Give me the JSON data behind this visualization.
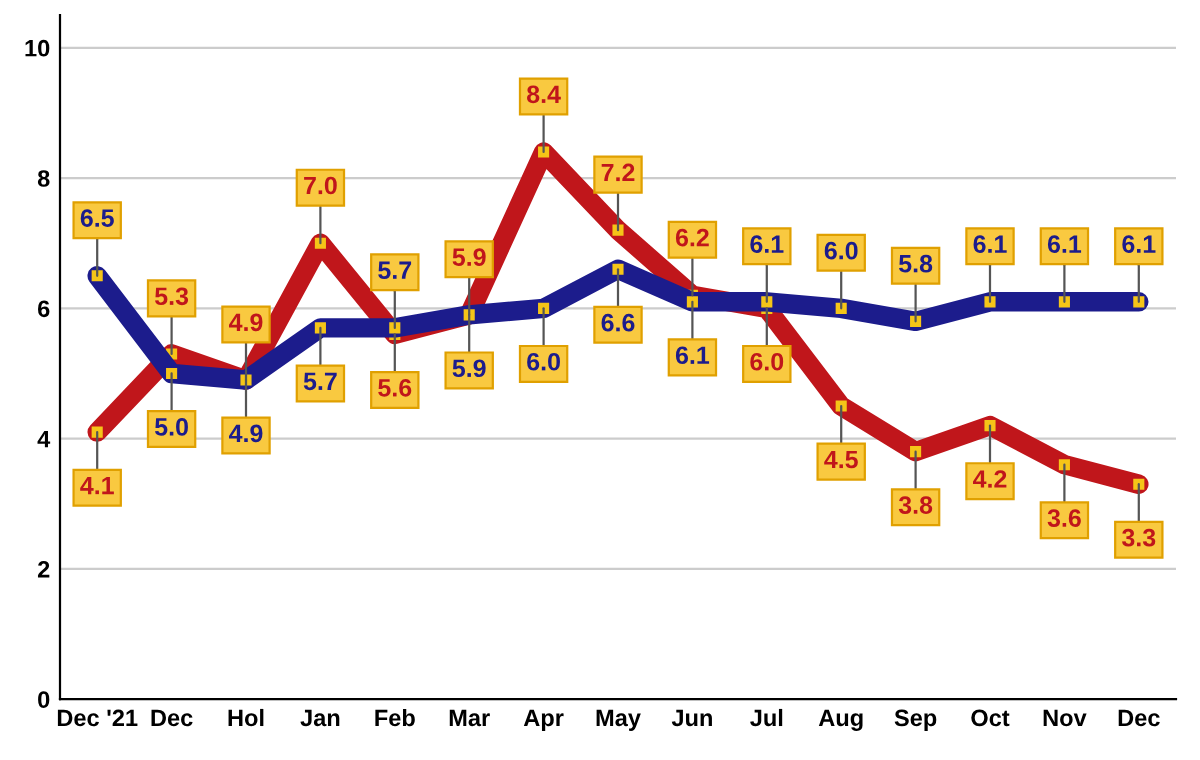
{
  "chart_data": {
    "type": "line",
    "categories": [
      "Dec '21",
      "Dec",
      "Hol",
      "Jan",
      "Feb",
      "Mar",
      "Apr",
      "May",
      "Jun",
      "Jul",
      "Aug",
      "Sep",
      "Oct",
      "Nov",
      "Dec"
    ],
    "series": [
      {
        "color": "#c0161b",
        "values": [
          4.1,
          5.3,
          4.9,
          7.0,
          5.6,
          5.9,
          8.4,
          7.2,
          6.2,
          6.0,
          4.5,
          3.8,
          4.2,
          3.6,
          3.3
        ],
        "value_labels": [
          "4.1",
          "5.3",
          "4.9",
          "7.0",
          "5.6",
          "5.9",
          "8.4",
          "7.2",
          "6.2",
          "6.0",
          "4.5",
          "3.8",
          "4.2",
          "3.6",
          "3.3"
        ]
      },
      {
        "color": "#1c1c8c",
        "values": [
          6.5,
          5.0,
          4.9,
          5.7,
          5.7,
          5.9,
          6.0,
          6.6,
          6.1,
          6.1,
          6.0,
          5.8,
          6.1,
          6.1,
          6.1
        ],
        "value_labels": [
          "6.5",
          "5.0",
          "4.9",
          "5.7",
          "5.7",
          "5.9",
          "6.0",
          "6.6",
          "6.1",
          "6.1",
          "6.0",
          "5.8",
          "6.1",
          "6.1",
          "6.1"
        ]
      }
    ],
    "ylim": [
      0,
      10.5
    ],
    "yticks": [
      0,
      2,
      4,
      6,
      8,
      10
    ],
    "grid": "y",
    "marker": "square"
  }
}
